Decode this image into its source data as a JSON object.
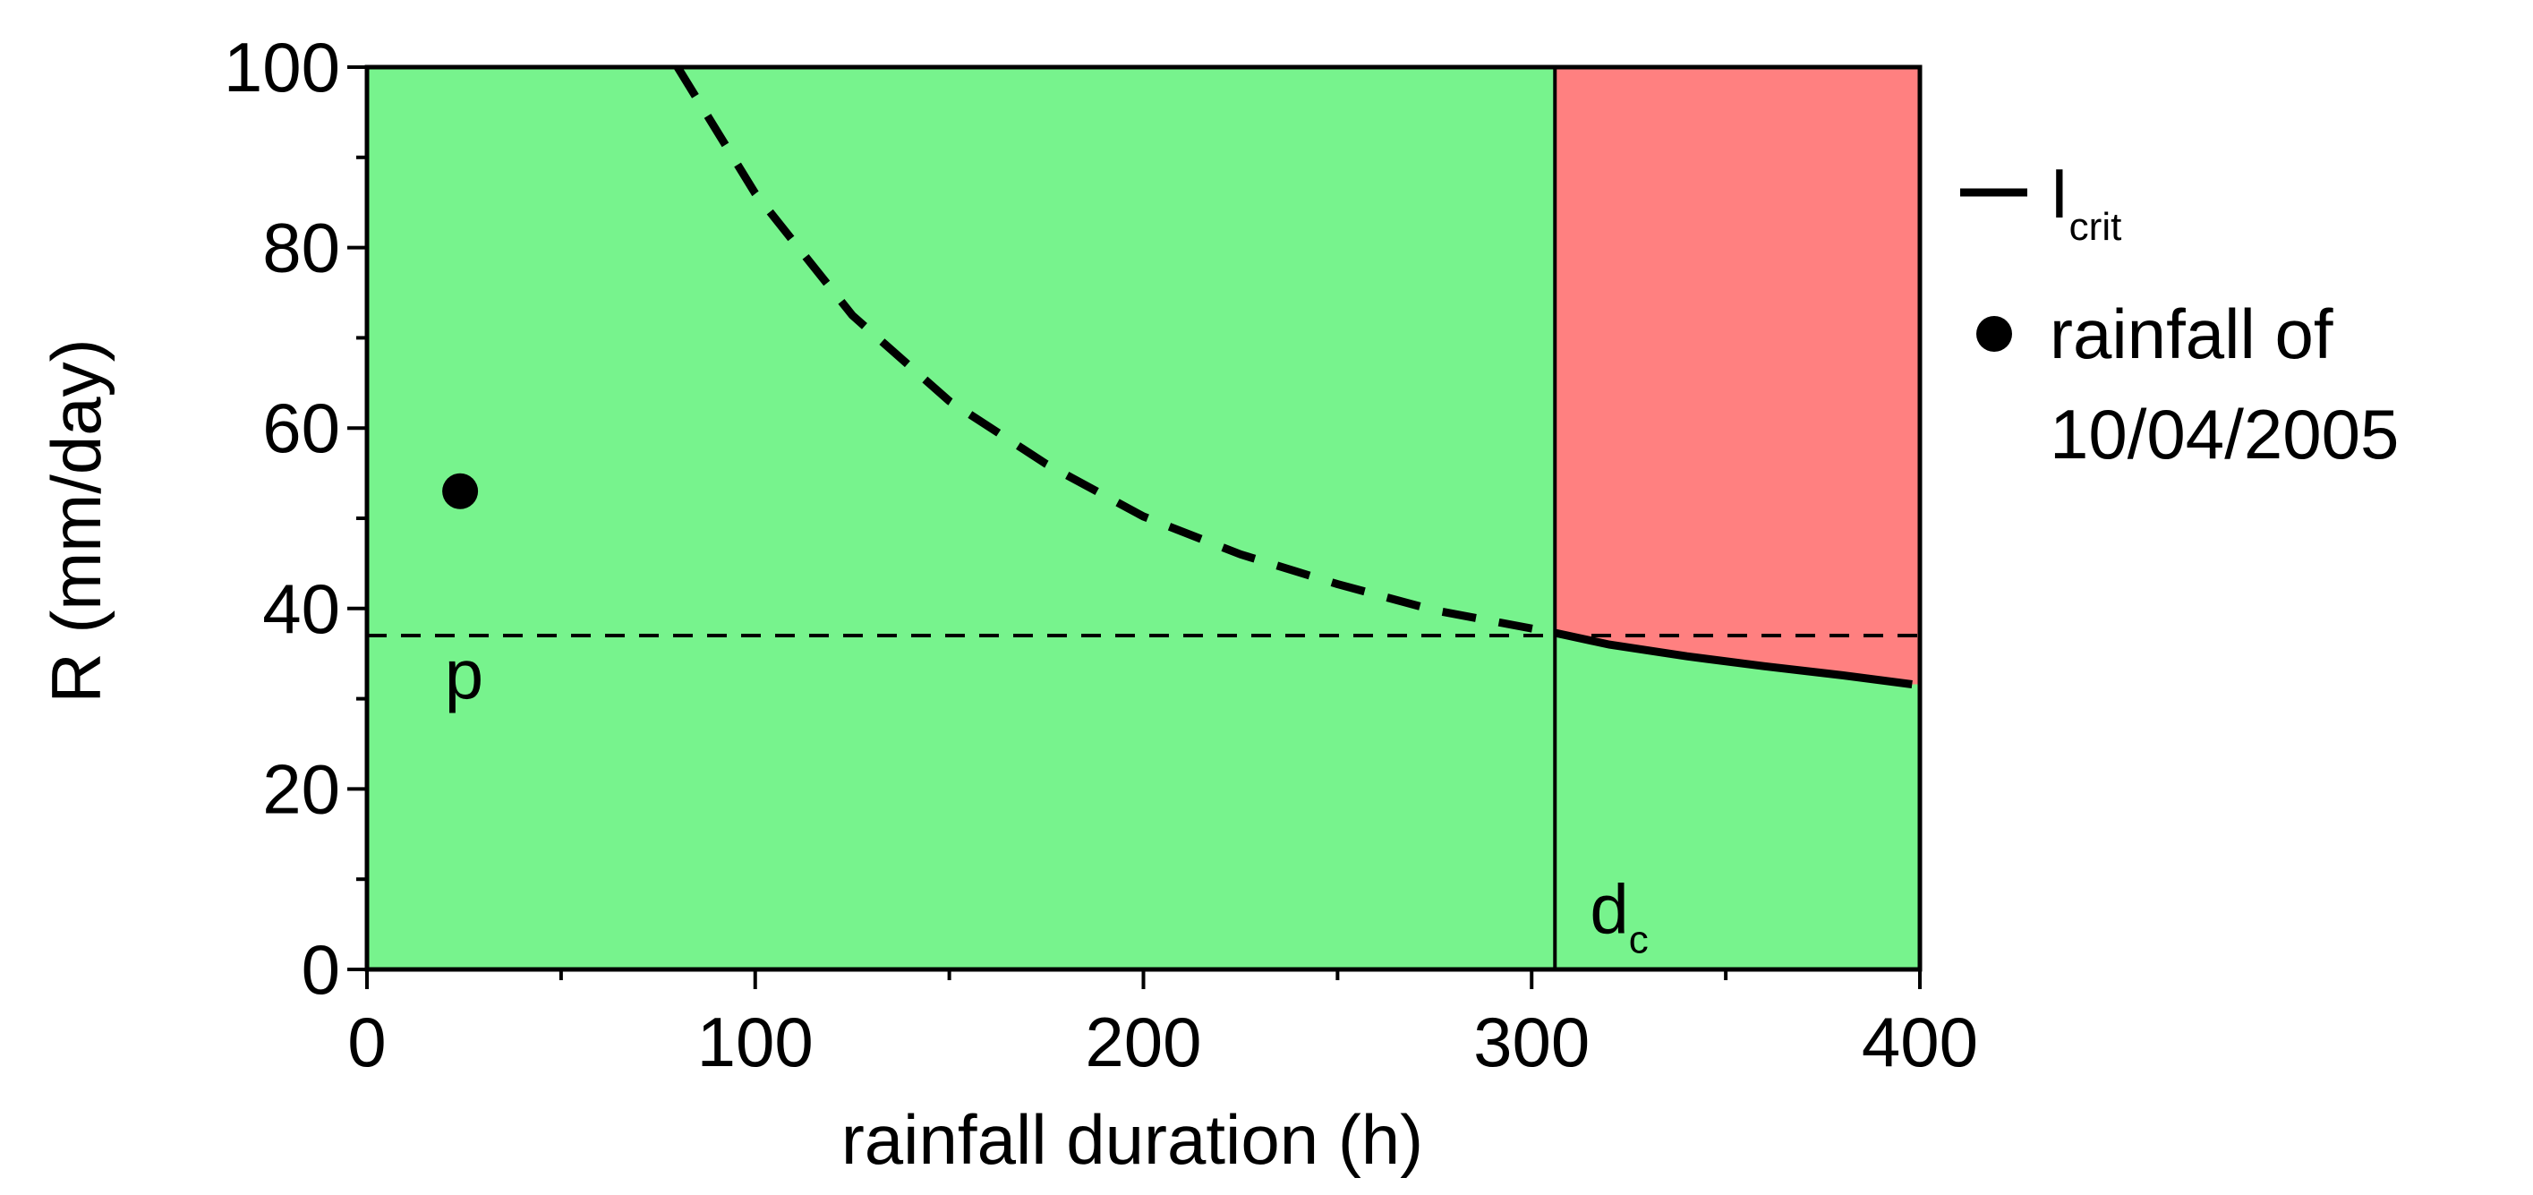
{
  "chart_data": {
    "type": "line",
    "xlabel": "rainfall duration (h)",
    "ylabel": "R (mm/day)",
    "xlim": [
      0,
      400
    ],
    "ylim": [
      0,
      100
    ],
    "x_ticks": [
      0,
      100,
      200,
      300,
      400
    ],
    "y_ticks": [
      0,
      20,
      40,
      60,
      80,
      100
    ],
    "x_tick_labels": [
      "0",
      "100",
      "200",
      "300",
      "400"
    ],
    "y_tick_labels": [
      "0",
      "20",
      "40",
      "60",
      "80",
      "100"
    ],
    "grid": false,
    "legend_position": "right",
    "regions": {
      "safe_color": "#77F38D",
      "critical_color": "#FF8080",
      "critical_x_range": [
        306,
        400
      ]
    },
    "series": [
      {
        "name": "I",
        "name_subscript": "crit",
        "style": "solid",
        "x": [
          306,
          320,
          340,
          360,
          380,
          398
        ],
        "y": [
          37.3,
          36.0,
          34.7,
          33.6,
          32.6,
          31.6
        ]
      },
      {
        "style": "dashed",
        "x": [
          80,
          100,
          125,
          150,
          175,
          200,
          225,
          250,
          275,
          306
        ],
        "y": [
          100,
          86,
          72.5,
          63,
          56,
          50.2,
          46,
          42.7,
          39.8,
          37.3
        ]
      },
      {
        "style": "dashed-thin",
        "x": [
          0,
          400
        ],
        "y": [
          37,
          37
        ]
      }
    ],
    "points": [
      {
        "name": "rainfall of 10/04/2005",
        "x": 24,
        "y": 53
      }
    ],
    "vlines": [
      {
        "x": 306
      }
    ],
    "annotations": [
      {
        "text": "p",
        "x": 25,
        "y": 30
      },
      {
        "text": "d",
        "subscript": "c",
        "x": 315,
        "y": 4
      }
    ],
    "legend": [
      {
        "marker": "line",
        "label": "I",
        "label_subscript": "crit"
      },
      {
        "marker": "dot",
        "label_line1": "rainfall of",
        "label_line2": "10/04/2005"
      }
    ]
  }
}
